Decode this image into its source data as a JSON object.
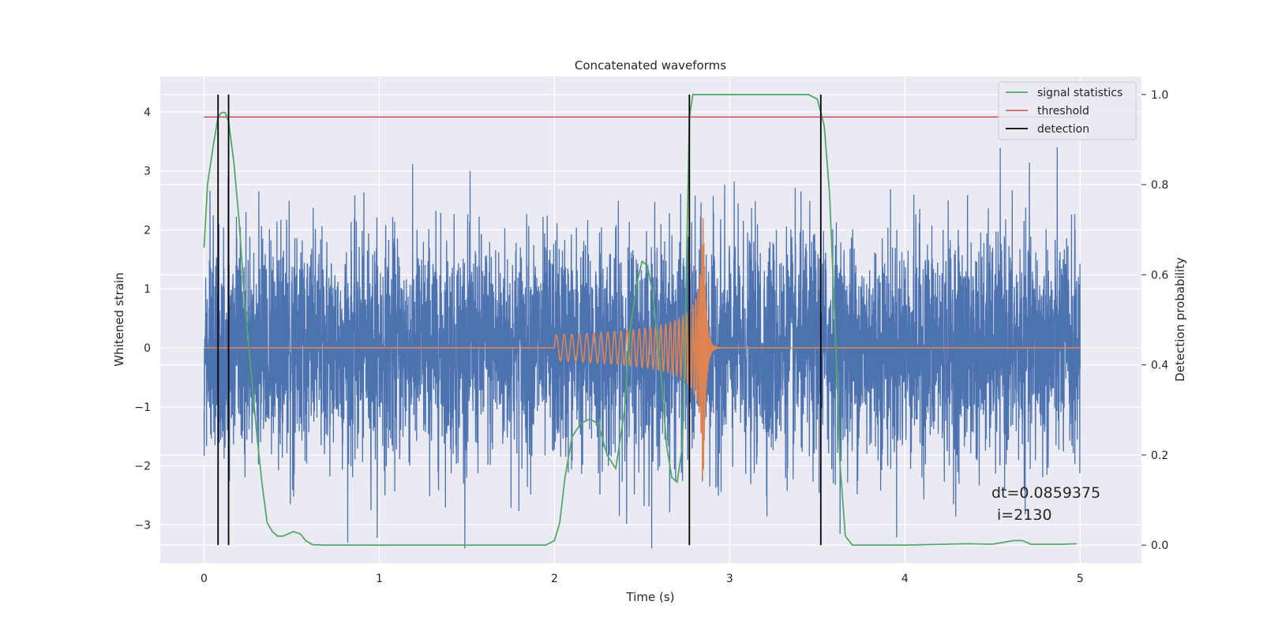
{
  "chart_data": {
    "type": "line",
    "title": "Concatenated waveforms",
    "xlabel": "Time (s)",
    "ylabel": "Whitened strain",
    "ylabel_right": "Detection probability",
    "xlim": [
      -0.25,
      5.35
    ],
    "ylim": [
      -3.65,
      4.6
    ],
    "ylim_right": [
      -0.04,
      1.04
    ],
    "x_ticks": [
      0,
      1,
      2,
      3,
      4,
      5
    ],
    "y_ticks": [
      -3,
      -2,
      -1,
      0,
      1,
      2,
      3,
      4
    ],
    "y_ticks_right": [
      0.0,
      0.2,
      0.4,
      0.6,
      0.8,
      1.0
    ],
    "y_tick_labels": [
      "−3",
      "−2",
      "−1",
      "0",
      "1",
      "2",
      "3",
      "4"
    ],
    "y_tick_labels_right": [
      "0.0",
      "0.2",
      "0.4",
      "0.6",
      "0.8",
      "1.0"
    ],
    "grid": true,
    "legend_position": "top-right",
    "colors": {
      "strain": "#4c72b0",
      "template": "#dd8452",
      "signal_statistics": "#55a868",
      "threshold": "#c44e52",
      "detection": "#000000",
      "background": "#eaeaf2"
    },
    "series": [
      {
        "name": "signal statistics",
        "axis": "right",
        "x": [
          0.0,
          0.02,
          0.05,
          0.08,
          0.1,
          0.12,
          0.14,
          0.17,
          0.2,
          0.23,
          0.27,
          0.3,
          0.33,
          0.36,
          0.39,
          0.42,
          0.45,
          0.48,
          0.51,
          0.55,
          0.58,
          0.62,
          0.7,
          1.0,
          1.5,
          1.95,
          2.0,
          2.03,
          2.06,
          2.1,
          2.15,
          2.2,
          2.25,
          2.3,
          2.35,
          2.4,
          2.43,
          2.47,
          2.5,
          2.53,
          2.56,
          2.6,
          2.64,
          2.67,
          2.7,
          2.73,
          2.75,
          2.77,
          2.79,
          2.82,
          2.9,
          3.2,
          3.45,
          3.5,
          3.54,
          3.57,
          3.6,
          3.63,
          3.66,
          3.7,
          4.0,
          4.35,
          4.5,
          4.62,
          4.67,
          4.72,
          4.9,
          4.98
        ],
        "values": [
          0.66,
          0.8,
          0.88,
          0.95,
          0.96,
          0.96,
          0.94,
          0.85,
          0.72,
          0.55,
          0.38,
          0.25,
          0.14,
          0.05,
          0.03,
          0.02,
          0.02,
          0.025,
          0.03,
          0.025,
          0.01,
          0.001,
          0.0,
          0.0,
          0.0,
          0.0,
          0.01,
          0.05,
          0.15,
          0.24,
          0.27,
          0.28,
          0.27,
          0.2,
          0.17,
          0.3,
          0.47,
          0.58,
          0.63,
          0.62,
          0.56,
          0.42,
          0.22,
          0.15,
          0.14,
          0.22,
          0.55,
          0.95,
          1.0,
          1.0,
          1.0,
          1.0,
          1.0,
          0.99,
          0.93,
          0.78,
          0.5,
          0.18,
          0.02,
          0.0,
          0.0,
          0.003,
          0.002,
          0.01,
          0.01,
          0.002,
          0.002,
          0.003
        ]
      },
      {
        "name": "threshold",
        "axis": "right",
        "x": [
          0.0,
          5.0
        ],
        "values": [
          0.95,
          0.95
        ]
      },
      {
        "name": "detection",
        "axis": "right",
        "x_lines": [
          0.08,
          0.14,
          2.77,
          3.52
        ],
        "range": [
          0.0,
          1.0
        ]
      }
    ],
    "strain_seed": 2130,
    "template": {
      "start": 2.0,
      "merger": 2.85,
      "end": 3.0,
      "peak_amplitude": 2.2
    },
    "annotations": [
      "dt=0.0859375",
      "i=2130"
    ]
  }
}
